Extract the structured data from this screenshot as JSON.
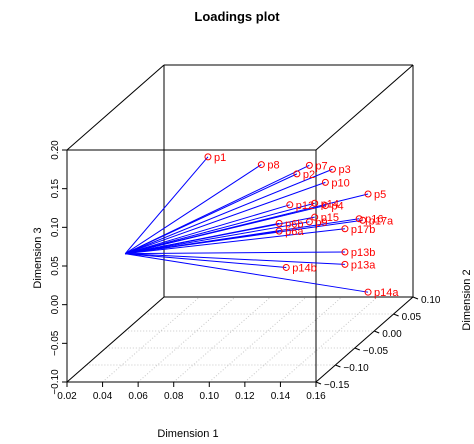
{
  "chart_data": {
    "type": "scatter",
    "title": "Loadings plot",
    "xlabel": "Dimension 1",
    "ylabel": "Dimension 2",
    "zlabel": "Dimension 3",
    "xlim": [
      0.02,
      0.16
    ],
    "ylim": [
      -0.15,
      0.1
    ],
    "zlim": [
      -0.1,
      0.2
    ],
    "x_ticks": [
      "0.02",
      "0.04",
      "0.06",
      "0.08",
      "0.10",
      "0.12",
      "0.14",
      "0.16"
    ],
    "y_ticks": [
      "−0.15",
      "−0.10",
      "−0.05",
      "0.00",
      "0.05",
      "0.10"
    ],
    "z_ticks": [
      "−0.10",
      "−0.05",
      "0.00",
      "0.05",
      "0.10",
      "0.15",
      "0.20"
    ],
    "origin": {
      "x": 0.02,
      "y": 0.0,
      "z": 0.0
    },
    "point_color": "#ff0000",
    "line_color": "#0000ff",
    "points": [
      {
        "label": "p1",
        "x": 0.06,
        "y": 0.03,
        "z": 0.112
      },
      {
        "label": "p8",
        "x": 0.09,
        "y": 0.03,
        "z": 0.102
      },
      {
        "label": "p7",
        "x": 0.117,
        "y": 0.03,
        "z": 0.101
      },
      {
        "label": "p2",
        "x": 0.11,
        "y": 0.03,
        "z": 0.09
      },
      {
        "label": "p3",
        "x": 0.13,
        "y": 0.03,
        "z": 0.096
      },
      {
        "label": "p10",
        "x": 0.126,
        "y": 0.03,
        "z": 0.079
      },
      {
        "label": "p5",
        "x": 0.15,
        "y": 0.03,
        "z": 0.064
      },
      {
        "label": "p12",
        "x": 0.106,
        "y": 0.03,
        "z": 0.05
      },
      {
        "label": "p14",
        "x": 0.12,
        "y": 0.03,
        "z": 0.052
      },
      {
        "label": "p4",
        "x": 0.126,
        "y": 0.03,
        "z": 0.049
      },
      {
        "label": "p15",
        "x": 0.12,
        "y": 0.03,
        "z": 0.034
      },
      {
        "label": "p16",
        "x": 0.145,
        "y": 0.03,
        "z": 0.032
      },
      {
        "label": "p17a",
        "x": 0.147,
        "y": 0.03,
        "z": 0.03
      },
      {
        "label": "p9",
        "x": 0.117,
        "y": 0.03,
        "z": 0.028
      },
      {
        "label": "p6b",
        "x": 0.1,
        "y": 0.03,
        "z": 0.026
      },
      {
        "label": "p6a",
        "x": 0.1,
        "y": 0.03,
        "z": 0.016
      },
      {
        "label": "p17b",
        "x": 0.137,
        "y": 0.03,
        "z": 0.019
      },
      {
        "label": "p13b",
        "x": 0.137,
        "y": 0.03,
        "z": -0.011
      },
      {
        "label": "p13a",
        "x": 0.137,
        "y": 0.03,
        "z": -0.027
      },
      {
        "label": "p14b",
        "x": 0.104,
        "y": 0.03,
        "z": -0.031
      },
      {
        "label": "p14a",
        "x": 0.15,
        "y": 0.03,
        "z": -0.063
      }
    ]
  }
}
